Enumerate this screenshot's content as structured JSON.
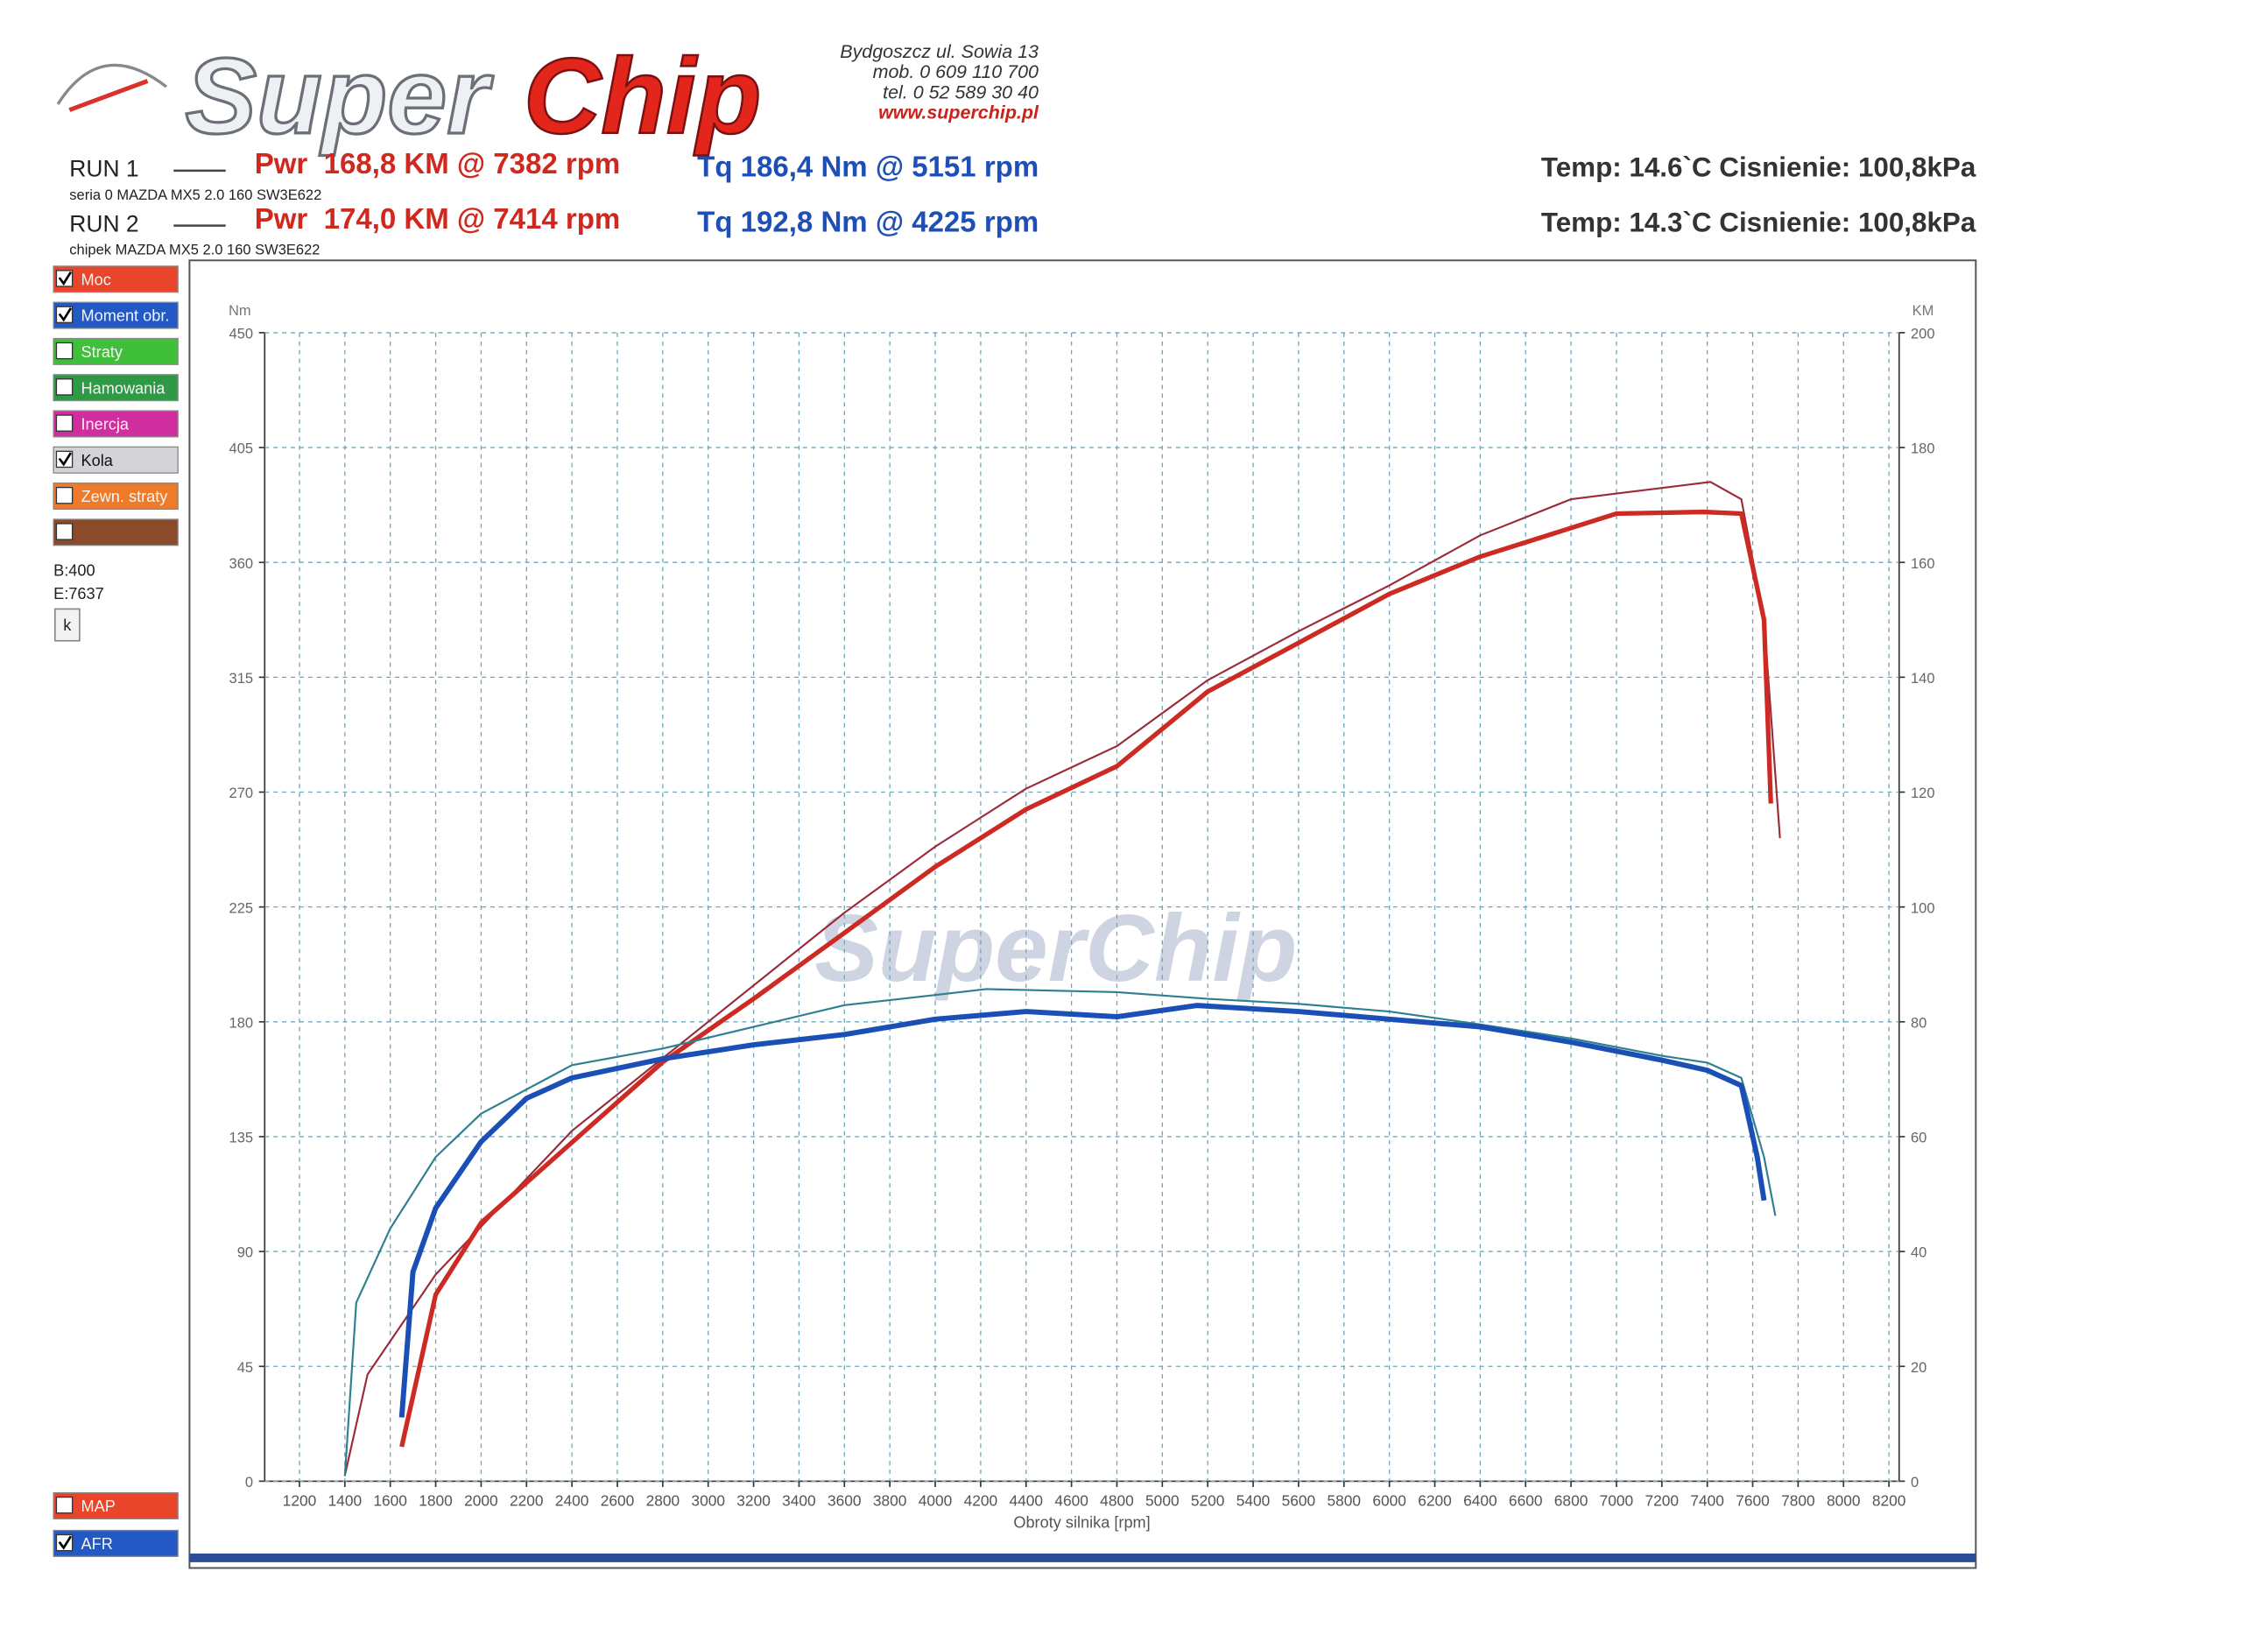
{
  "header": {
    "logo": {
      "part1": "Super",
      "part2": "Chip"
    },
    "address": [
      "Bydgoszcz ul. Sowia 13",
      "mob. 0 609 110 700",
      "tel. 0 52 589 30 40",
      "www.superchip.pl"
    ]
  },
  "runs": [
    {
      "label": "RUN 1",
      "power": "Pwr  168,8 KM @ 7382 rpm",
      "torque": "Tq 186,4 Nm @ 5151 rpm",
      "conditions": "Temp: 14.6`C Cisnienie: 100,8kPa",
      "vehicle": "seria 0 MAZDA MX5 2.0 160 SW3E622"
    },
    {
      "label": "RUN 2",
      "power": "Pwr  174,0 KM @ 7414 rpm",
      "torque": "Tq 192,8 Nm @ 4225 rpm",
      "conditions": "Temp: 14.3`C Cisnienie: 100,8kPa",
      "vehicle": "chipek MAZDA MX5 2.0 160 SW3E622"
    }
  ],
  "panel": {
    "buttons": [
      {
        "label": "Moc",
        "checked": true,
        "color": "#e8452a"
      },
      {
        "label": "Moment obr.",
        "checked": true,
        "color": "#2359c4"
      },
      {
        "label": "Straty",
        "checked": false,
        "color": "#3fbf3a"
      },
      {
        "label": "Hamowania",
        "checked": false,
        "color": "#2f9a45"
      },
      {
        "label": "Inercja",
        "checked": false,
        "color": "#d02d9e"
      },
      {
        "label": "Kola",
        "checked": true,
        "color": "#d4d4d8"
      },
      {
        "label": "Zewn. straty",
        "checked": false,
        "color": "#ee7a2a"
      },
      {
        "checked": false,
        "color": "#8b4a2a"
      }
    ],
    "info": [
      "B:400",
      "E:7637"
    ],
    "button_k": "k",
    "bottom_buttons": [
      {
        "label": "MAP",
        "checked": false,
        "color": "#e8452a"
      },
      {
        "label": "AFR",
        "checked": true,
        "color": "#2359c4"
      }
    ]
  },
  "chart_data": {
    "type": "line",
    "watermark": "SuperChip",
    "x_label": "Obroty silnika [rpm]",
    "y_label": "Nm",
    "y2_label": "KM",
    "xlim": [
      1047,
      8245
    ],
    "ylim": [
      0,
      450
    ],
    "y2lim": [
      0,
      200
    ],
    "xticks": [
      1200,
      1400,
      1600,
      1800,
      2000,
      2200,
      2400,
      2600,
      2800,
      3000,
      3200,
      3400,
      3600,
      3800,
      4000,
      4200,
      4400,
      4600,
      4800,
      5000,
      5200,
      5400,
      5600,
      5800,
      6000,
      6200,
      6400,
      6600,
      6800,
      7000,
      7200,
      7400,
      7600,
      7800,
      8000,
      8200
    ],
    "yticks": [
      0,
      45,
      90,
      135,
      180,
      225,
      270,
      315,
      360,
      405,
      450
    ],
    "y2ticks": [
      0,
      20,
      40,
      60,
      80,
      100,
      120,
      140,
      160,
      180,
      200
    ],
    "grid": true,
    "series": [
      {
        "color": "#9b2b3a",
        "width": 1.3,
        "axis": "y2",
        "x": [
          1400,
          1500,
          1800,
          2400,
          3000,
          3600,
          4000,
          4400,
          4800,
          5200,
          5600,
          6000,
          6400,
          6800,
          7000,
          7414,
          7550,
          7650,
          7720
        ],
        "values": [
          1,
          18.6,
          36,
          61,
          80,
          99,
          110.5,
          120.6,
          128,
          139.5,
          148,
          156,
          164.7,
          171,
          172,
          174,
          171,
          150,
          112
        ]
      },
      {
        "color": "#cc2a22",
        "width": 3.2,
        "axis": "y2",
        "x": [
          1650,
          1800,
          2000,
          2400,
          2800,
          3200,
          3600,
          4000,
          4400,
          4800,
          5200,
          5600,
          6000,
          6400,
          6800,
          7000,
          7382,
          7550,
          7650,
          7680
        ],
        "values": [
          6,
          32.5,
          45,
          59,
          73,
          84,
          95.5,
          107,
          117,
          124.5,
          137.5,
          146,
          154.5,
          161,
          166,
          168.5,
          168.8,
          168.5,
          150,
          118
        ]
      },
      {
        "color": "#2e7f8f",
        "width": 1.3,
        "x": [
          1400,
          1450,
          1600,
          1800,
          2000,
          2400,
          2800,
          3200,
          3600,
          4000,
          4225,
          4800,
          5200,
          5600,
          6000,
          6400,
          6800,
          7200,
          7400,
          7550,
          7650,
          7700
        ],
        "values": [
          2,
          70,
          99,
          127,
          144,
          163,
          169.5,
          178,
          186.5,
          190.5,
          192.8,
          191.6,
          189,
          187,
          184,
          179,
          173.5,
          166.7,
          164,
          158,
          127,
          104
        ]
      },
      {
        "color": "#1a4fb5",
        "width": 3.6,
        "x": [
          1650,
          1700,
          1800,
          2000,
          2200,
          2400,
          2800,
          3200,
          3600,
          4000,
          4400,
          4800,
          5151,
          5600,
          6000,
          6400,
          6800,
          7200,
          7400,
          7550,
          7620,
          7650
        ],
        "values": [
          25,
          82,
          107,
          133,
          150,
          158,
          165.5,
          171,
          175,
          181,
          184,
          182,
          186.4,
          184,
          181,
          178,
          172,
          165,
          161,
          155,
          127,
          110
        ]
      }
    ]
  }
}
